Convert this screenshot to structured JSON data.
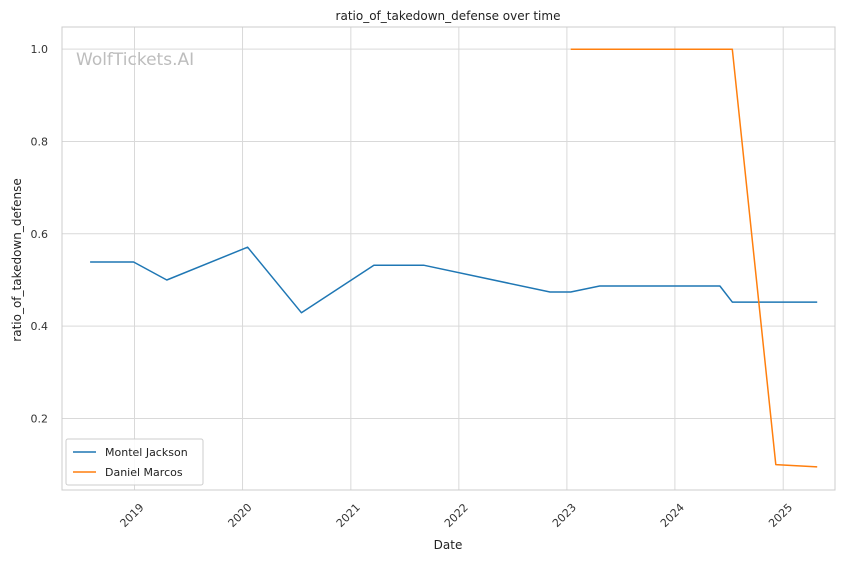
{
  "chart_data": {
    "type": "line",
    "title": "ratio_of_takedown_defense over time",
    "xlabel": "Date",
    "ylabel": "ratio_of_takedown_defense",
    "watermark": "WolfTickets.AI",
    "x_ticks": [
      "2019",
      "2020",
      "2021",
      "2022",
      "2023",
      "2024",
      "2025"
    ],
    "y_ticks": [
      "0.2",
      "0.4",
      "0.6",
      "0.8",
      "1.0"
    ],
    "xlim": [
      "2018-05-01",
      "2025-06-25"
    ],
    "ylim": [
      0.045,
      1.048
    ],
    "grid": true,
    "legend_position": "lower-left",
    "series": [
      {
        "name": "Montel Jackson",
        "color": "#1f77b4",
        "points": [
          [
            "2018-08-04",
            0.539
          ],
          [
            "2018-12-29",
            0.539
          ],
          [
            "2019-04-20",
            0.5
          ],
          [
            "2020-01-18",
            0.571
          ],
          [
            "2020-07-18",
            0.429
          ],
          [
            "2021-03-20",
            0.532
          ],
          [
            "2021-09-04",
            0.532
          ],
          [
            "2022-11-05",
            0.474
          ],
          [
            "2023-01-14",
            0.474
          ],
          [
            "2023-04-22",
            0.487
          ],
          [
            "2024-06-01",
            0.487
          ],
          [
            "2024-07-13",
            0.452
          ],
          [
            "2025-04-26",
            0.452
          ]
        ]
      },
      {
        "name": "Daniel Marcos",
        "color": "#ff7f0e",
        "points": [
          [
            "2023-01-14",
            1.0
          ],
          [
            "2024-07-13",
            1.0
          ],
          [
            "2024-12-07",
            0.1
          ],
          [
            "2025-04-26",
            0.095
          ]
        ]
      }
    ]
  }
}
